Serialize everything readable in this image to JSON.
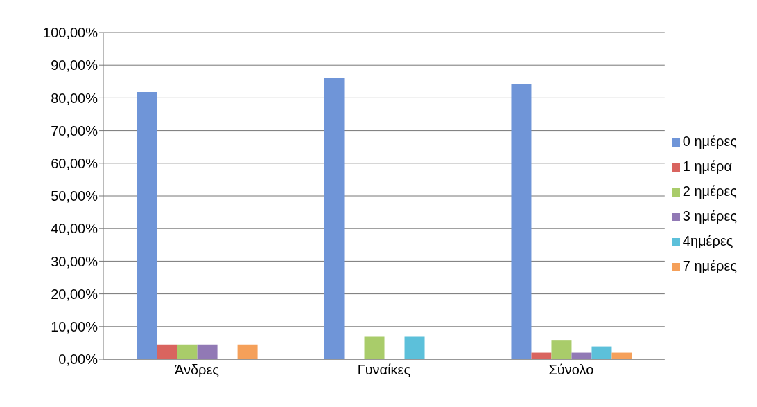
{
  "chart_data": {
    "type": "bar",
    "categories": [
      "Άνδρες",
      "Γυναίκες",
      "Σύνολο"
    ],
    "series": [
      {
        "name": "0 ημέρες",
        "color": "#6f95d8",
        "values": [
          81.8,
          86.2,
          84.3
        ]
      },
      {
        "name": "1 ημέρα",
        "color": "#d9645f",
        "values": [
          4.5,
          0,
          2.0
        ]
      },
      {
        "name": "2 ημέρες",
        "color": "#a9cc6a",
        "values": [
          4.5,
          6.9,
          5.9
        ]
      },
      {
        "name": "3 ημέρες",
        "color": "#9179b5",
        "values": [
          4.5,
          0,
          2.0
        ]
      },
      {
        "name": "4ημέρες",
        "color": "#5cc0da",
        "values": [
          0,
          6.9,
          3.9
        ]
      },
      {
        "name": "7 ημέρες",
        "color": "#f5a05a",
        "values": [
          4.5,
          0,
          2.0
        ]
      }
    ],
    "ylim": [
      0,
      100
    ],
    "yticks": [
      {
        "value": 0,
        "label": "0,00%"
      },
      {
        "value": 10,
        "label": "10,00%"
      },
      {
        "value": 20,
        "label": "20,00%"
      },
      {
        "value": 30,
        "label": "30,00%"
      },
      {
        "value": 40,
        "label": "40,00%"
      },
      {
        "value": 50,
        "label": "50,00%"
      },
      {
        "value": 60,
        "label": "60,00%"
      },
      {
        "value": 70,
        "label": "70,00%"
      },
      {
        "value": 80,
        "label": "80,00%"
      },
      {
        "value": 90,
        "label": "90,00%"
      },
      {
        "value": 100,
        "label": "100,00%"
      }
    ],
    "grid": "y",
    "legend": "right"
  }
}
